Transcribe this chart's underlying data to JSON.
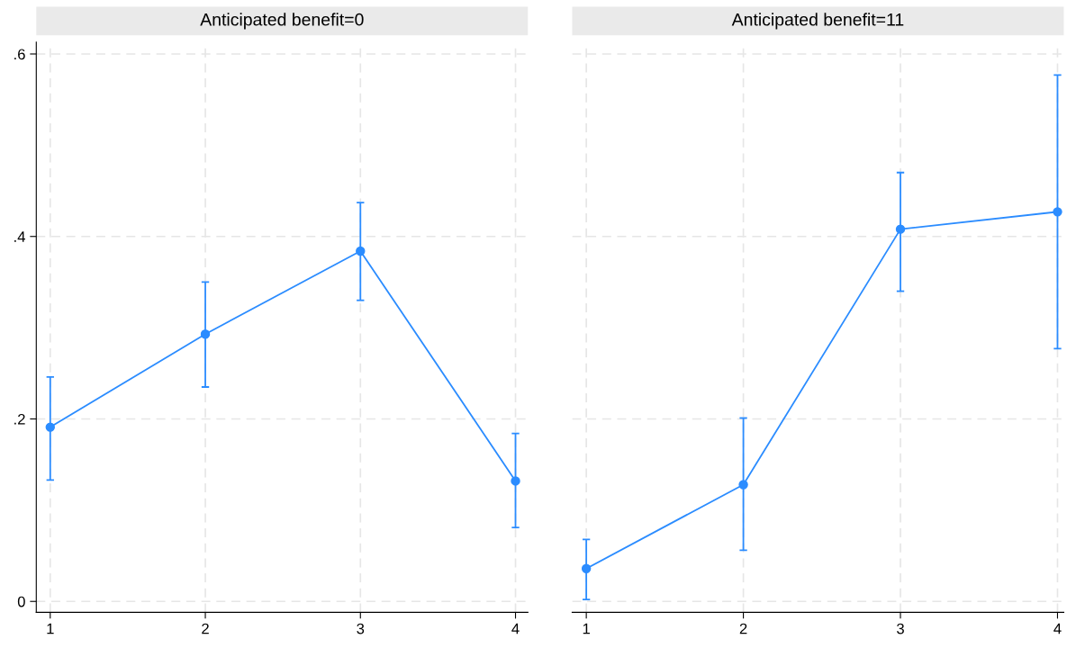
{
  "chart_data": [
    {
      "type": "line",
      "title": "Anticipated benefit=0",
      "x": [
        1,
        2,
        3,
        4
      ],
      "marker": "circle",
      "line_style": "solid",
      "grid": true,
      "series": [
        {
          "color": "#2b8cff",
          "values": [
            0.191,
            0.293,
            0.384,
            0.132
          ],
          "errors": [
            [
              0.133,
              0.246
            ],
            [
              0.235,
              0.35
            ],
            [
              0.33,
              0.437
            ],
            [
              0.081,
              0.184
            ]
          ]
        }
      ],
      "xlim": [
        0.91,
        4.08
      ],
      "xticks": [
        1,
        2,
        3,
        4
      ],
      "ylim": [
        -0.012,
        0.613
      ],
      "yticks": [
        {
          "value": 0,
          "label": "0"
        },
        {
          "value": 0.2,
          "label": ".2"
        },
        {
          "value": 0.4,
          "label": ".4"
        },
        {
          "value": 0.6,
          "label": ".6"
        }
      ]
    },
    {
      "type": "line",
      "title": "Anticipated benefit=11",
      "x": [
        1,
        2,
        3,
        4
      ],
      "marker": "circle",
      "line_style": "solid",
      "grid": true,
      "tick_labels": "x",
      "series": [
        {
          "color": "#2b8cff",
          "values": [
            0.036,
            0.128,
            0.408,
            0.427
          ],
          "errors": [
            [
              0.002,
              0.068
            ],
            [
              0.056,
              0.201
            ],
            [
              0.34,
              0.47
            ],
            [
              0.277,
              0.577
            ]
          ]
        }
      ],
      "xlim": [
        0.91,
        4.04
      ],
      "xticks": [
        1,
        2,
        3,
        4
      ],
      "ylim": [
        -0.012,
        0.613
      ],
      "yticks": [
        {
          "value": 0,
          "label": null
        },
        {
          "value": 0.2,
          "label": null
        },
        {
          "value": 0.4,
          "label": null
        },
        {
          "value": 0.6,
          "label": null
        }
      ]
    }
  ]
}
